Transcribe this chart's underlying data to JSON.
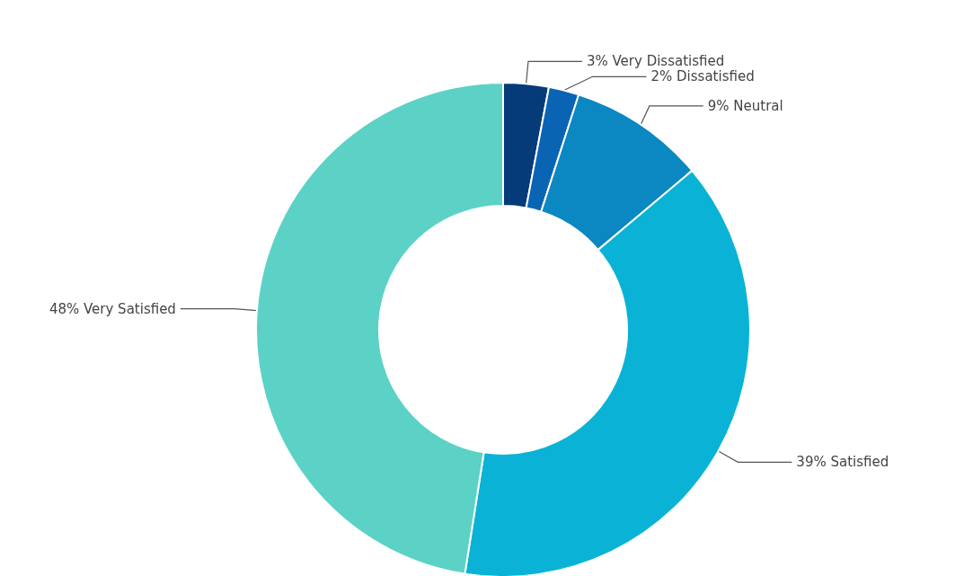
{
  "chart_data": {
    "type": "donut",
    "categories": [
      "Very Dissatisfied",
      "Dissatisfied",
      "Neutral",
      "Satisfied",
      "Very Satisfied"
    ],
    "values": [
      3,
      2,
      9,
      39,
      48
    ],
    "value_labels": [
      "3%",
      "2%",
      "9%",
      "39%",
      "48%"
    ],
    "colors": [
      "#063b7a",
      "#0a64b4",
      "#0b87c2",
      "#0ab3d6",
      "#5cd2c6"
    ],
    "legend": false
  }
}
